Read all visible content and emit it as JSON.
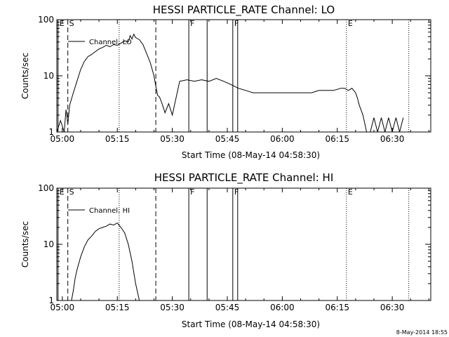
{
  "footer": {
    "timestamp": "8-May-2014 18:55"
  },
  "chart_data": [
    {
      "type": "line",
      "title": "HESSI PARTICLE_RATE Channel: LO",
      "xlabel": "Start Time (08-May-14 04:58:30)",
      "ylabel": "Counts/sec",
      "yscale": "log",
      "ylim": [
        1,
        100
      ],
      "xlim": [
        "04:58:30",
        "06:40:30"
      ],
      "x_ticks": [
        "05:00",
        "05:15",
        "05:30",
        "05:45",
        "06:00",
        "06:15",
        "06:30"
      ],
      "y_ticks": [
        "1",
        "10",
        "100"
      ],
      "legend": {
        "position": "top-left",
        "entries": [
          "Channel: LO"
        ]
      },
      "grid": false,
      "series": [
        {
          "name": "Channel: LO",
          "x": [
            "04:58:30",
            "04:59:30",
            "05:00:30",
            "05:01:00",
            "05:01:30",
            "05:02:00",
            "05:03:00",
            "05:04:00",
            "05:05:00",
            "05:06:00",
            "05:07:00",
            "05:08:00",
            "05:09:00",
            "05:10:00",
            "05:11:00",
            "05:12:00",
            "05:13:00",
            "05:14:00",
            "05:15:00",
            "05:16:00",
            "05:17:00",
            "05:18:00",
            "05:18:30",
            "05:19:00",
            "05:19:30",
            "05:20:00",
            "05:21:00",
            "05:22:00",
            "05:23:00",
            "05:24:00",
            "05:25:00",
            "05:25:30",
            "05:26:00",
            "05:26:30",
            "05:27:00",
            "05:27:30",
            "05:28:00",
            "05:29:00",
            "05:30:00",
            "05:32:00",
            "05:34:00",
            "05:36:00",
            "05:38:00",
            "05:40:00",
            "05:42:00",
            "05:44:00",
            "05:46:00",
            "05:48:00",
            "05:50:00",
            "05:52:00",
            "05:54:00",
            "05:56:00",
            "05:58:00",
            "06:00:00",
            "06:02:00",
            "06:04:00",
            "06:06:00",
            "06:08:00",
            "06:10:00",
            "06:12:00",
            "06:14:00",
            "06:16:00",
            "06:17:00",
            "06:18:00",
            "06:19:00",
            "06:20:00",
            "06:20:30",
            "06:21:00",
            "06:22:00",
            "06:23:00",
            "06:24:00",
            "06:25:00",
            "06:26:00",
            "06:27:00",
            "06:28:00",
            "06:29:00",
            "06:30:00",
            "06:31:00",
            "06:32:00",
            "06:33:00"
          ],
          "values": [
            1.0,
            1.6,
            1.0,
            2.5,
            1.4,
            3.0,
            5.0,
            8.0,
            13.0,
            18.0,
            22.0,
            24.0,
            27.0,
            30.0,
            32.0,
            35.0,
            33.0,
            36.0,
            35.0,
            38.0,
            42.0,
            40.0,
            52.0,
            45.0,
            55.0,
            48.0,
            44.0,
            36.0,
            25.0,
            17.0,
            10.0,
            6.5,
            4.5,
            4.2,
            3.5,
            2.8,
            2.2,
            3.2,
            2.0,
            8.0,
            8.5,
            8.0,
            8.5,
            8.0,
            9.0,
            8.0,
            7.0,
            6.0,
            5.5,
            5.0,
            5.0,
            5.0,
            5.0,
            5.0,
            5.0,
            5.0,
            5.0,
            5.0,
            5.5,
            5.5,
            5.5,
            6.0,
            6.0,
            5.5,
            6.0,
            5.0,
            4.0,
            3.0,
            2.0,
            1.0,
            1.0,
            1.8,
            1.0,
            1.8,
            1.0,
            1.8,
            1.0,
            1.8,
            1.0,
            1.8
          ]
        }
      ],
      "vertical_markers": [
        {
          "time": "04:58:50",
          "style": "solid",
          "label": "E"
        },
        {
          "time": "05:01:30",
          "style": "dashed",
          "label": "S"
        },
        {
          "time": "05:15:30",
          "style": "dotted",
          "label": ""
        },
        {
          "time": "05:25:30",
          "style": "dashed",
          "label": ""
        },
        {
          "time": "05:34:30",
          "style": "solid",
          "label": "F"
        },
        {
          "time": "05:39:30",
          "style": "solid",
          "label": ""
        },
        {
          "time": "05:46:30",
          "style": "solid",
          "label": "F"
        },
        {
          "time": "05:47:50",
          "style": "solid",
          "label": ""
        },
        {
          "time": "06:17:30",
          "style": "dotted",
          "label": "E"
        },
        {
          "time": "06:34:30",
          "style": "dotted",
          "label": ""
        }
      ]
    },
    {
      "type": "line",
      "title": "HESSI PARTICLE_RATE Channel: HI",
      "xlabel": "Start Time (08-May-14 04:58:30)",
      "ylabel": "Counts/sec",
      "yscale": "log",
      "ylim": [
        1,
        100
      ],
      "xlim": [
        "04:58:30",
        "06:40:30"
      ],
      "x_ticks": [
        "05:00",
        "05:15",
        "05:30",
        "05:45",
        "06:00",
        "06:15",
        "06:30"
      ],
      "y_ticks": [
        "1",
        "10",
        "100"
      ],
      "legend": {
        "position": "top-left",
        "entries": [
          "Channel: HI"
        ]
      },
      "grid": false,
      "series": [
        {
          "name": "Channel: HI",
          "x": [
            "05:02:30",
            "05:03:00",
            "05:03:30",
            "05:04:00",
            "05:05:00",
            "05:06:00",
            "05:07:00",
            "05:08:00",
            "05:09:00",
            "05:10:00",
            "05:11:00",
            "05:12:00",
            "05:13:00",
            "05:14:00",
            "05:15:00",
            "05:16:00",
            "05:17:00",
            "05:18:00",
            "05:19:00",
            "05:20:00",
            "05:21:00"
          ],
          "values": [
            1.0,
            1.5,
            2.5,
            3.5,
            6.0,
            9.0,
            12.0,
            14.0,
            17.0,
            19.0,
            20.0,
            21.0,
            23.0,
            22.0,
            24.0,
            20.0,
            16.0,
            10.0,
            5.0,
            2.0,
            1.0
          ]
        }
      ],
      "vertical_markers": [
        {
          "time": "04:58:50",
          "style": "solid",
          "label": "E"
        },
        {
          "time": "05:01:30",
          "style": "dashed",
          "label": "S"
        },
        {
          "time": "05:15:30",
          "style": "dotted",
          "label": ""
        },
        {
          "time": "05:25:30",
          "style": "dashed",
          "label": ""
        },
        {
          "time": "05:34:30",
          "style": "solid",
          "label": "F"
        },
        {
          "time": "05:39:30",
          "style": "solid",
          "label": ""
        },
        {
          "time": "05:46:30",
          "style": "solid",
          "label": "F"
        },
        {
          "time": "05:47:50",
          "style": "solid",
          "label": ""
        },
        {
          "time": "06:17:30",
          "style": "dotted",
          "label": "E"
        },
        {
          "time": "06:34:30",
          "style": "dotted",
          "label": ""
        }
      ]
    }
  ]
}
